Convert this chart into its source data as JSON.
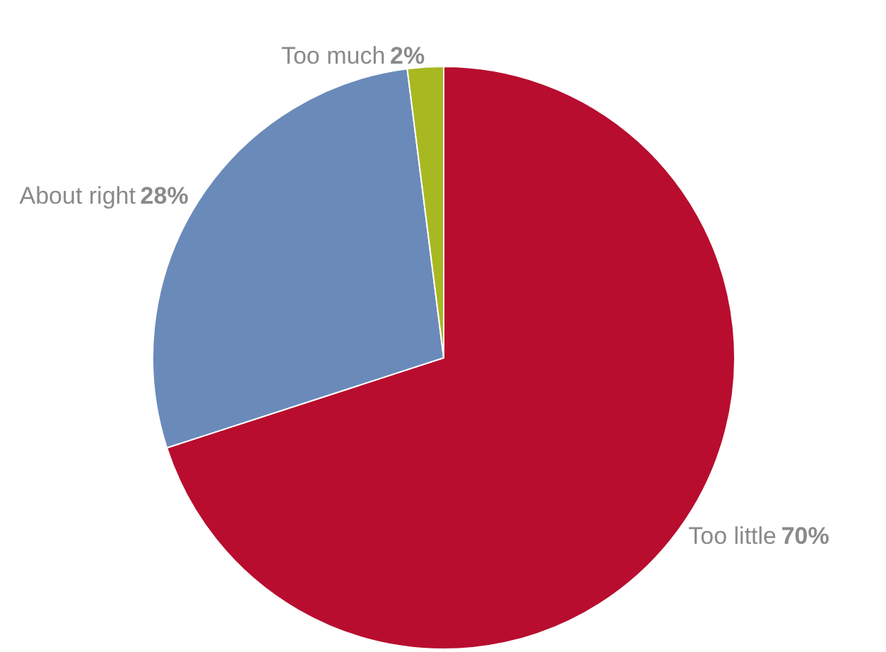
{
  "chart_data": {
    "type": "pie",
    "categories": [
      "Too little",
      "About right",
      "Too much"
    ],
    "values": [
      70,
      28,
      2
    ],
    "value_labels": [
      "70%",
      "28%",
      "2%"
    ],
    "colors": [
      "#b80d2e",
      "#6a8aba",
      "#a8b820"
    ],
    "legend": false
  }
}
